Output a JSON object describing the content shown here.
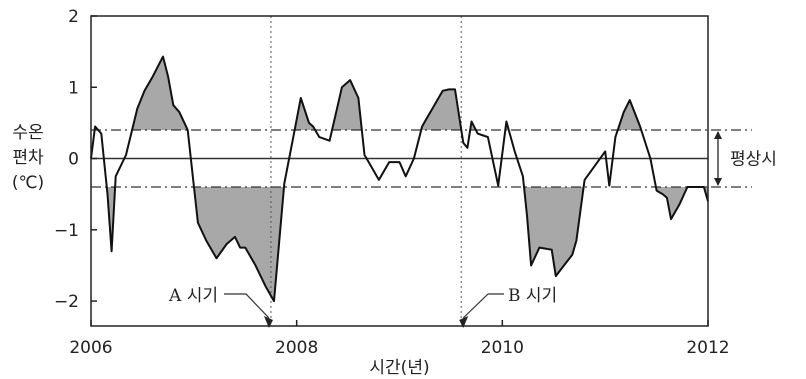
{
  "chart_data": {
    "type": "line",
    "title": "",
    "xlabel": "시간(년)",
    "ylabel_lines": [
      "수온",
      "편차",
      "(℃)"
    ],
    "xlim": [
      2006,
      2012
    ],
    "ylim": [
      -2.35,
      2.0
    ],
    "x_ticks": [
      2006,
      2008,
      2010,
      2012
    ],
    "x_tick_labels": [
      "2006",
      "2008",
      "2010",
      "2012"
    ],
    "y_ticks": [
      2,
      1,
      0,
      -1,
      -2
    ],
    "y_tick_labels": [
      "2",
      "1",
      "0",
      "−1",
      "−2"
    ],
    "normal_range": {
      "lower": -0.4,
      "upper": 0.4,
      "label": "평상시"
    },
    "annotations": [
      {
        "label": "A 시기",
        "x": 2007.75
      },
      {
        "label": "B 시기",
        "x": 2009.6
      }
    ],
    "series": [
      {
        "x": [
          2006.0,
          2006.04,
          2006.1,
          2006.16,
          2006.2,
          2006.24,
          2006.34,
          2006.45,
          2006.52,
          2006.6,
          2006.7,
          2006.75,
          2006.8,
          2006.86,
          2006.94,
          2007.04,
          2007.12,
          2007.22,
          2007.32,
          2007.4,
          2007.45,
          2007.5,
          2007.6,
          2007.7,
          2007.78,
          2007.88,
          2007.96,
          2008.04,
          2008.12,
          2008.16,
          2008.22,
          2008.32,
          2008.44,
          2008.52,
          2008.6,
          2008.66,
          2008.7,
          2008.8,
          2008.9,
          2009.0,
          2009.06,
          2009.14,
          2009.22,
          2009.26,
          2009.32,
          2009.42,
          2009.48,
          2009.54,
          2009.62,
          2009.66,
          2009.7,
          2009.76,
          2009.8,
          2009.86,
          2009.96,
          2010.04,
          2010.12,
          2010.2,
          2010.24,
          2010.28,
          2010.36,
          2010.48,
          2010.52,
          2010.6,
          2010.68,
          2010.72,
          2010.8,
          2011.0,
          2011.04,
          2011.1,
          2011.18,
          2011.24,
          2011.34,
          2011.44,
          2011.5,
          2011.56,
          2011.6,
          2011.64,
          2011.72,
          2011.8,
          2011.88,
          2011.96,
          2012.0
        ],
        "y": [
          0.0,
          0.45,
          0.35,
          -0.5,
          -1.3,
          -0.25,
          0.05,
          0.7,
          0.95,
          1.15,
          1.43,
          1.15,
          0.75,
          0.65,
          0.4,
          -0.9,
          -1.15,
          -1.4,
          -1.2,
          -1.1,
          -1.25,
          -1.25,
          -1.5,
          -1.8,
          -2.0,
          -0.35,
          0.25,
          0.85,
          0.5,
          0.45,
          0.3,
          0.25,
          1.0,
          1.1,
          0.85,
          0.05,
          -0.05,
          -0.3,
          -0.05,
          -0.05,
          -0.25,
          0.0,
          0.45,
          0.55,
          0.7,
          0.95,
          0.97,
          0.97,
          0.22,
          0.15,
          0.52,
          0.35,
          0.33,
          0.3,
          -0.38,
          0.52,
          0.1,
          -0.25,
          -0.8,
          -1.5,
          -1.25,
          -1.28,
          -1.65,
          -1.5,
          -1.35,
          -1.15,
          -0.3,
          0.1,
          -0.38,
          0.3,
          0.65,
          0.82,
          0.45,
          0.0,
          -0.45,
          -0.5,
          -0.55,
          -0.85,
          -0.65,
          -0.4,
          -0.4,
          -0.4,
          -0.6
        ]
      }
    ]
  }
}
